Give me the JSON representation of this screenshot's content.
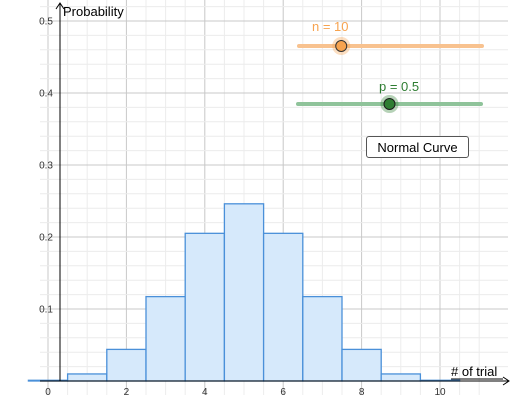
{
  "chart_data": {
    "type": "bar",
    "x": [
      0,
      1,
      2,
      3,
      4,
      5,
      6,
      7,
      8,
      9,
      10
    ],
    "values": [
      0.001,
      0.0098,
      0.0439,
      0.1172,
      0.2051,
      0.2461,
      0.2051,
      0.1172,
      0.0439,
      0.0098,
      0.001
    ],
    "xlabel": "# of trial",
    "ylabel": "Probability",
    "x_ticks": [
      "0",
      "2",
      "4",
      "6",
      "8",
      "10"
    ],
    "y_ticks": [
      "0.1",
      "0.2",
      "0.3",
      "0.4",
      "0.5"
    ],
    "xlim": [
      -0.5,
      11
    ],
    "ylim": [
      0,
      0.51
    ],
    "grid": true,
    "colors": {
      "bar_fill": "#d6e9fb",
      "bar_stroke": "#4a90d9",
      "grid_major": "#c8c8c8",
      "grid_minor": "#ececec"
    }
  },
  "sliders": {
    "n": {
      "label": "n = 10",
      "value": 10,
      "min": 1,
      "max": 40,
      "color": "#f7a34f",
      "track_color": "#f8c28f"
    },
    "p": {
      "label": "p = 0.5",
      "value": 0.5,
      "min": 0,
      "max": 1,
      "color": "#2e7d32",
      "track_color": "#8fc39a"
    }
  },
  "buttons": {
    "normal_curve": "Normal Curve"
  }
}
